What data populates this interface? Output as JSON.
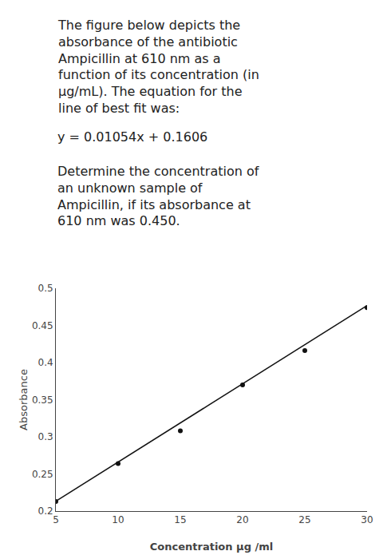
{
  "chart_data": {
    "type": "scatter",
    "annotations": [
      "The figure below depicts the\nabsorbance of the antibiotic\nAmpicillin at 610 nm as a\nfunction of its concentration (in\nμg/mL). The equation for the\nline of best fit was:",
      "y = 0.01054x + 0.1606",
      "Determine the concentration of\nan unknown sample of\nAmpicillin, if its absorbance at\n610 nm was 0.450."
    ],
    "xlabel": "Concentration μg /ml",
    "ylabel": "Absorbance",
    "xlim": [
      5,
      30
    ],
    "ylim": [
      0.2,
      0.5
    ],
    "xticks": [
      5,
      10,
      15,
      20,
      25,
      30
    ],
    "yticks": [
      0.2,
      0.25,
      0.3,
      0.35,
      0.4,
      0.45,
      0.5
    ],
    "grid": false,
    "series": [
      {
        "type": "scatter",
        "color": "#111111",
        "marker": "circle",
        "x": [
          5,
          10,
          15,
          20,
          25,
          30
        ],
        "values": [
          0.213,
          0.264,
          0.308,
          0.37,
          0.416,
          0.474
        ]
      },
      {
        "type": "line",
        "color": "#111111",
        "line_style": "solid",
        "x": [
          5,
          30
        ],
        "values": [
          0.2133,
          0.4768
        ]
      }
    ]
  }
}
